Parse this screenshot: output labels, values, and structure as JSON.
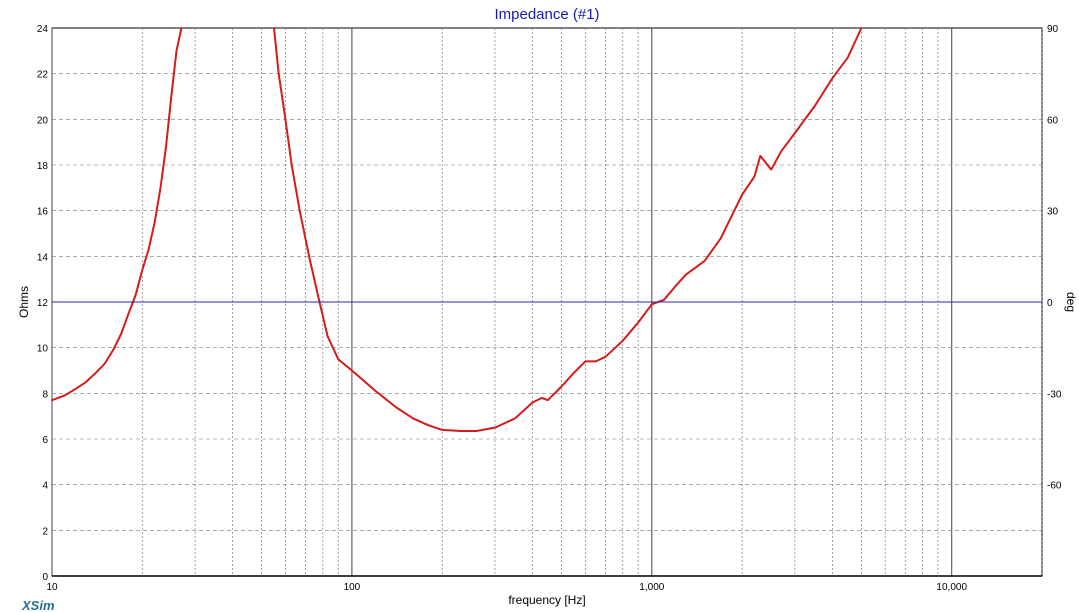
{
  "app": {
    "brand": "XSim"
  },
  "chart_data": {
    "type": "line",
    "title": "Impedance (#1)",
    "xlabel": "frequency [Hz]",
    "ylabel": "Ohms",
    "y2label": "deg",
    "xscale": "log",
    "xlim": [
      10,
      20000
    ],
    "ylim": [
      0,
      24
    ],
    "y2lim": [
      -90,
      90
    ],
    "grid": true,
    "x_ticks": [
      {
        "value": 10,
        "label": "10"
      },
      {
        "value": 100,
        "label": "100"
      },
      {
        "value": 1000,
        "label": "1,000"
      },
      {
        "value": 10000,
        "label": "10,000"
      }
    ],
    "y_ticks": [
      "0",
      "2",
      "4",
      "6",
      "8",
      "10",
      "12",
      "14",
      "16",
      "18",
      "20",
      "22",
      "24"
    ],
    "y2_ticks": [
      {
        "value": 90,
        "label": "90"
      },
      {
        "value": 60,
        "label": "60"
      },
      {
        "value": 30,
        "label": "30"
      },
      {
        "value": 0,
        "label": "0"
      },
      {
        "value": -30,
        "label": "-30"
      },
      {
        "value": -60,
        "label": "-60"
      }
    ],
    "colors": {
      "impedance": "#d41c1c",
      "phase": "#2a2a9e",
      "title": "#1a1aa6"
    },
    "series": [
      {
        "axis": "y",
        "points": [
          [
            10,
            7.7
          ],
          [
            11,
            7.9
          ],
          [
            12,
            8.2
          ],
          [
            13,
            8.5
          ],
          [
            14,
            8.9
          ],
          [
            15,
            9.3
          ],
          [
            16,
            9.9
          ],
          [
            17,
            10.6
          ],
          [
            18,
            11.5
          ],
          [
            19,
            12.3
          ],
          [
            20,
            13.4
          ],
          [
            21,
            14.3
          ],
          [
            22,
            15.5
          ],
          [
            23,
            17.0
          ],
          [
            24,
            18.8
          ],
          [
            25,
            21.0
          ],
          [
            26,
            23.0
          ],
          [
            27,
            24.0
          ]
        ]
      },
      {
        "axis": "y",
        "points": [
          [
            55,
            24.0
          ],
          [
            57,
            22.0
          ],
          [
            60,
            20.0
          ],
          [
            63,
            18.0
          ],
          [
            67,
            16.0
          ],
          [
            72,
            14.0
          ],
          [
            77,
            12.3
          ],
          [
            83,
            10.5
          ],
          [
            90,
            9.5
          ],
          [
            100,
            9.0
          ],
          [
            120,
            8.1
          ],
          [
            140,
            7.4
          ],
          [
            160,
            6.9
          ],
          [
            180,
            6.6
          ],
          [
            200,
            6.4
          ],
          [
            230,
            6.35
          ],
          [
            260,
            6.35
          ],
          [
            300,
            6.5
          ],
          [
            350,
            6.9
          ],
          [
            400,
            7.6
          ],
          [
            430,
            7.8
          ],
          [
            450,
            7.7
          ],
          [
            500,
            8.3
          ],
          [
            550,
            8.9
          ],
          [
            600,
            9.4
          ],
          [
            650,
            9.4
          ],
          [
            700,
            9.6
          ],
          [
            800,
            10.3
          ],
          [
            900,
            11.1
          ],
          [
            1000,
            11.9
          ],
          [
            1100,
            12.1
          ],
          [
            1200,
            12.7
          ],
          [
            1300,
            13.2
          ],
          [
            1500,
            13.8
          ],
          [
            1700,
            14.8
          ],
          [
            2000,
            16.7
          ],
          [
            2200,
            17.5
          ],
          [
            2300,
            18.4
          ],
          [
            2500,
            17.8
          ],
          [
            2700,
            18.6
          ],
          [
            3000,
            19.4
          ],
          [
            3500,
            20.6
          ],
          [
            4000,
            21.8
          ],
          [
            4500,
            22.7
          ],
          [
            5000,
            24.0
          ]
        ]
      },
      {
        "axis": "y2",
        "points": [
          [
            10,
            0
          ],
          [
            20000,
            0
          ]
        ]
      }
    ]
  }
}
